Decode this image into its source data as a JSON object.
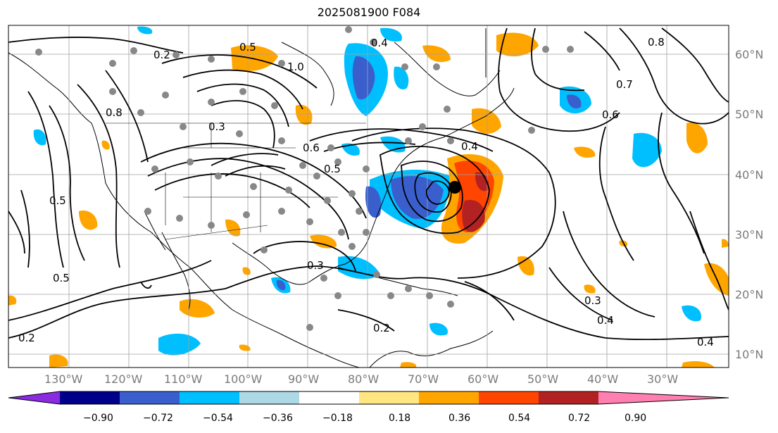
{
  "title": "2025081900 F084",
  "latitude_labels": [
    "60°N",
    "50°N",
    "40°N",
    "30°N",
    "20°N",
    "10°N"
  ],
  "longitude_labels": [
    "130°W",
    "120°W",
    "110°W",
    "100°W",
    "90°W",
    "80°W",
    "70°W",
    "60°W",
    "50°W",
    "40°W",
    "30°W"
  ],
  "colorbar": {
    "ticks": [
      "−0.90",
      "−0.72",
      "−0.54",
      "−0.36",
      "−0.18",
      "0.18",
      "0.36",
      "0.54",
      "0.72",
      "0.90"
    ],
    "colors": [
      "#8a2be2",
      "#00008b",
      "#3a5fcd",
      "#00bfff",
      "#add8e6",
      "#ffffff",
      "#ffe680",
      "#ffa500",
      "#ff4500",
      "#b22222",
      "#ff7fb0"
    ]
  },
  "contour_labels": [
    {
      "text": "0.2"
    },
    {
      "text": "0.4"
    },
    {
      "text": "0.5"
    },
    {
      "text": "0.3"
    },
    {
      "text": "0.6"
    },
    {
      "text": "0.8"
    },
    {
      "text": "1.0"
    },
    {
      "text": "0.4"
    },
    {
      "text": "0.5"
    },
    {
      "text": "0.7"
    },
    {
      "text": "0.8"
    },
    {
      "text": "0.6"
    },
    {
      "text": "0.3"
    },
    {
      "text": "0.2"
    },
    {
      "text": "0.2"
    },
    {
      "text": "0.4"
    },
    {
      "text": "0.3"
    },
    {
      "text": "0.4"
    },
    {
      "text": "0.5"
    },
    {
      "text": "0.5"
    }
  ]
}
